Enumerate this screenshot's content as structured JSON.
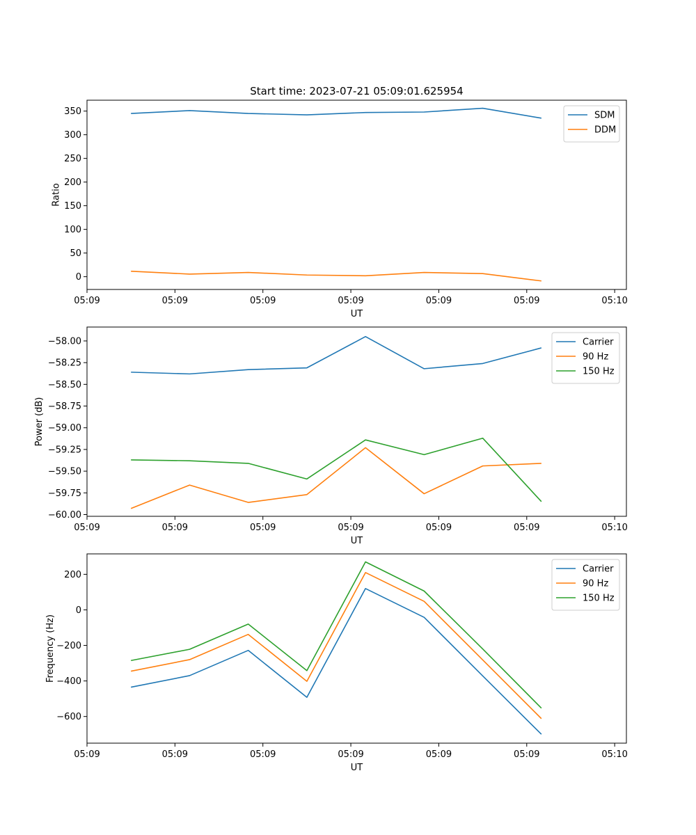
{
  "chart_data": [
    {
      "type": "line",
      "title": "Start time: 2023-07-21 05:09:01.625954",
      "xlabel": "UT",
      "ylabel": "Ratio",
      "x": [
        0,
        1,
        2,
        3,
        4,
        5,
        6,
        7
      ],
      "xlim": [
        -0.75,
        8.45
      ],
      "x_ticks": [
        -0.75,
        0.75,
        2.25,
        3.75,
        5.25,
        6.75,
        8.25
      ],
      "x_tick_labels": [
        "05:09",
        "05:09",
        "05:09",
        "05:09",
        "05:09",
        "05:09",
        "05:10"
      ],
      "ylim": [
        -27,
        373
      ],
      "y_ticks": [
        0,
        50,
        100,
        150,
        200,
        250,
        300,
        350
      ],
      "y_tick_labels": [
        "0",
        "50",
        "100",
        "150",
        "200",
        "250",
        "300",
        "350"
      ],
      "legend": "top-right",
      "series": [
        {
          "name": "SDM",
          "color": "#1f77b4",
          "values": [
            345,
            351,
            345,
            342,
            347,
            348,
            356,
            335
          ]
        },
        {
          "name": "DDM",
          "color": "#ff7f0e",
          "values": [
            11.5,
            5.5,
            9,
            3.5,
            2,
            9,
            6.5,
            -9
          ]
        }
      ]
    },
    {
      "type": "line",
      "title": "",
      "xlabel": "UT",
      "ylabel": "Power (dB)",
      "x": [
        0,
        1,
        2,
        3,
        4,
        5,
        6,
        7
      ],
      "xlim": [
        -0.75,
        8.45
      ],
      "x_ticks": [
        -0.75,
        0.75,
        2.25,
        3.75,
        5.25,
        6.75,
        8.25
      ],
      "x_tick_labels": [
        "05:09",
        "05:09",
        "05:09",
        "05:09",
        "05:09",
        "05:09",
        "05:10"
      ],
      "ylim": [
        -60.02,
        -57.84
      ],
      "y_ticks": [
        -60.0,
        -59.75,
        -59.5,
        -59.25,
        -59.0,
        -58.75,
        -58.5,
        -58.25,
        -58.0
      ],
      "y_tick_labels": [
        "−60.00",
        "−59.75",
        "−59.50",
        "−59.25",
        "−59.00",
        "−58.75",
        "−58.50",
        "−58.25",
        "−58.00"
      ],
      "legend": "top-right",
      "series": [
        {
          "name": "Carrier",
          "color": "#1f77b4",
          "values": [
            -58.36,
            -58.38,
            -58.33,
            -58.31,
            -57.95,
            -58.32,
            -58.26,
            -58.08
          ]
        },
        {
          "name": "90 Hz",
          "color": "#ff7f0e",
          "values": [
            -59.93,
            -59.66,
            -59.86,
            -59.77,
            -59.23,
            -59.76,
            -59.44,
            -59.41
          ]
        },
        {
          "name": "150 Hz",
          "color": "#2ca02c",
          "values": [
            -59.37,
            -59.38,
            -59.41,
            -59.59,
            -59.14,
            -59.31,
            -59.12,
            -59.85
          ]
        }
      ]
    },
    {
      "type": "line",
      "title": "",
      "xlabel": "UT",
      "ylabel": "Frequency (Hz)",
      "x": [
        0,
        1,
        2,
        3,
        4,
        5,
        6,
        7
      ],
      "xlim": [
        -0.75,
        8.45
      ],
      "x_ticks": [
        -0.75,
        0.75,
        2.25,
        3.75,
        5.25,
        6.75,
        8.25
      ],
      "x_tick_labels": [
        "05:09",
        "05:09",
        "05:09",
        "05:09",
        "05:09",
        "05:09",
        "05:10"
      ],
      "ylim": [
        -750,
        315
      ],
      "y_ticks": [
        -600,
        -400,
        -200,
        0,
        200
      ],
      "y_tick_labels": [
        "−600",
        "−400",
        "−200",
        "0",
        "200"
      ],
      "legend": "top-right",
      "series": [
        {
          "name": "Carrier",
          "color": "#1f77b4",
          "values": [
            -435,
            -370,
            -228,
            -492,
            120,
            -42,
            -372,
            -700
          ]
        },
        {
          "name": "90 Hz",
          "color": "#ff7f0e",
          "values": [
            -345,
            -280,
            -138,
            -402,
            210,
            48,
            -282,
            -612
          ]
        },
        {
          "name": "150 Hz",
          "color": "#2ca02c",
          "values": [
            -285,
            -222,
            -80,
            -342,
            270,
            106,
            -220,
            -553
          ]
        }
      ]
    }
  ]
}
